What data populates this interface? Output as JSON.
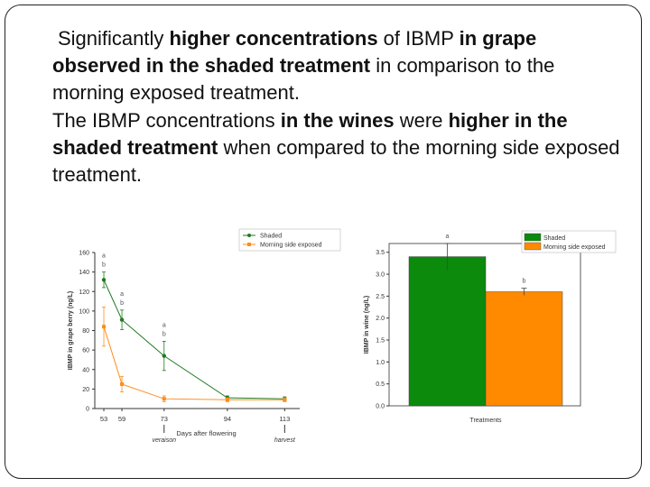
{
  "text": {
    "p1": [
      {
        "t": "Significantly ",
        "b": false
      },
      {
        "t": "higher concentrations",
        "b": true
      },
      {
        "t": " of IBMP ",
        "b": false
      },
      {
        "t": "in grape observed in the shaded treatment",
        "b": true
      },
      {
        "t": " in comparison to the morning exposed treatment.",
        "b": false
      }
    ],
    "p2": [
      {
        "t": "The IBMP concentrations ",
        "b": false
      },
      {
        "t": "in the wines",
        "b": true
      },
      {
        "t": " were ",
        "b": false
      },
      {
        "t": "higher in the shaded treatment",
        "b": true
      },
      {
        "t": " when compared to the morning side exposed treatment.",
        "b": false
      }
    ]
  },
  "colors": {
    "shaded": "#1f7a1f",
    "morning": "#ff8c1a",
    "shaded_bar": "#0b8a0b",
    "morning_bar": "#ff8a00"
  },
  "chart_data": [
    {
      "type": "line",
      "xlabel": "Days after flowering",
      "ylabel": "IBMP in grape berry (ng/L)",
      "ylim": [
        0,
        160
      ],
      "yticks": [
        0,
        20,
        40,
        60,
        80,
        100,
        120,
        140,
        160
      ],
      "xticks": [
        53,
        59,
        73,
        94,
        113
      ],
      "x_annotations": [
        {
          "x": 73,
          "label": "veraison"
        },
        {
          "x": 113,
          "label": "harvest"
        }
      ],
      "legend": "top-right",
      "series": [
        {
          "name": "Shaded",
          "x": [
            53,
            59,
            73,
            94,
            113
          ],
          "y": [
            132,
            91,
            54,
            11,
            10
          ],
          "err": [
            8,
            10,
            15,
            2,
            2
          ],
          "color_key": "shaded"
        },
        {
          "name": "Morning side exposed",
          "x": [
            53,
            59,
            73,
            94,
            113
          ],
          "y": [
            84,
            25,
            10,
            9,
            9
          ],
          "err": [
            20,
            8,
            3,
            2,
            2
          ],
          "color_key": "morning"
        }
      ],
      "significance": [
        {
          "x": 53,
          "labels": [
            "a",
            "b"
          ]
        },
        {
          "x": 59,
          "labels": [
            "a",
            "b"
          ]
        },
        {
          "x": 73,
          "labels": [
            "a",
            "b"
          ]
        }
      ]
    },
    {
      "type": "bar",
      "xlabel": "Treatments",
      "ylabel": "IBMP in wine (ng/L)",
      "ylim": [
        0,
        3.7
      ],
      "yticks": [
        0.0,
        0.5,
        1.0,
        1.5,
        2.0,
        2.5,
        3.0,
        3.5
      ],
      "legend": "top-right",
      "categories": [
        "Shaded",
        "Morning side exposed"
      ],
      "values": [
        3.4,
        2.6
      ],
      "err": [
        0.3,
        0.08
      ],
      "letters": [
        "a",
        "b"
      ],
      "color_keys": [
        "shaded_bar",
        "morning_bar"
      ]
    }
  ]
}
